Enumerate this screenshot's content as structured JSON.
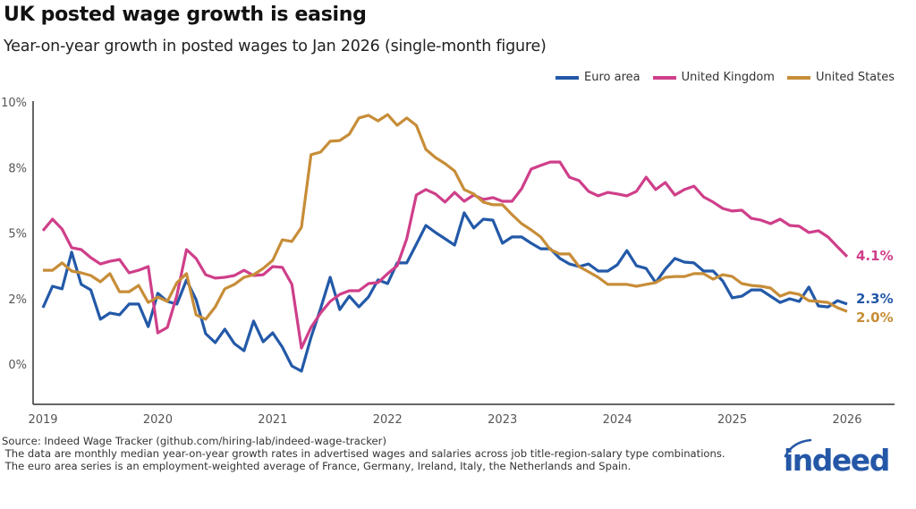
{
  "header": {
    "title": "UK posted wage growth is easing",
    "subtitle": "Year-on-year growth in posted wages to Jan 2026 (single-month figure)"
  },
  "colors": {
    "euro": "#2359a8",
    "uk": "#cf3f8a",
    "us": "#c78d38",
    "axis": "#333333"
  },
  "chart_data": {
    "type": "line",
    "title": "UK posted wage growth is easing",
    "x_start": "2019-01",
    "x_end": "2026-01",
    "x_frequency": "monthly",
    "x_ticks": [
      "2019",
      "2020",
      "2021",
      "2022",
      "2023",
      "2024",
      "2025",
      "2026"
    ],
    "y_ticks": [
      {
        "value": 0,
        "label": "0%"
      },
      {
        "value": 2.5,
        "label": "2%"
      },
      {
        "value": 5,
        "label": "5%"
      },
      {
        "value": 7.5,
        "label": "8%"
      },
      {
        "value": 10,
        "label": "10%"
      }
    ],
    "ylim": [
      -1.5,
      10
    ],
    "grid": false,
    "legend_position": "top-right",
    "series": [
      {
        "name": "Euro area",
        "color": "#2359a8",
        "end_label": "2.3%",
        "values": [
          2.15,
          2.97,
          2.87,
          4.27,
          3.04,
          2.83,
          1.71,
          1.95,
          1.88,
          2.29,
          2.29,
          1.43,
          2.7,
          2.39,
          2.29,
          3.21,
          2.46,
          1.16,
          0.82,
          1.33,
          0.78,
          0.51,
          1.64,
          0.85,
          1.19,
          0.65,
          -0.07,
          -0.27,
          1.02,
          2.12,
          3.31,
          2.08,
          2.59,
          2.18,
          2.56,
          3.21,
          3.07,
          3.86,
          3.86,
          4.57,
          5.29,
          5.02,
          4.78,
          4.54,
          5.77,
          5.19,
          5.53,
          5.49,
          4.61,
          4.85,
          4.85,
          4.61,
          4.4,
          4.4,
          4.03,
          3.82,
          3.72,
          3.82,
          3.55,
          3.55,
          3.79,
          4.33,
          3.75,
          3.65,
          3.11,
          3.62,
          4.03,
          3.89,
          3.86,
          3.55,
          3.55,
          3.17,
          2.53,
          2.59,
          2.83,
          2.83,
          2.59,
          2.35,
          2.49,
          2.39,
          2.94,
          2.22,
          2.18,
          2.42,
          2.29
        ]
      },
      {
        "name": "United Kingdom",
        "color": "#cf3f8a",
        "end_label": "4.1%",
        "values": [
          5.09,
          5.53,
          5.15,
          4.44,
          4.37,
          4.06,
          3.82,
          3.92,
          3.99,
          3.48,
          3.58,
          3.72,
          1.19,
          1.4,
          2.63,
          4.37,
          4.03,
          3.41,
          3.28,
          3.31,
          3.38,
          3.58,
          3.38,
          3.41,
          3.72,
          3.69,
          3.04,
          0.61,
          1.4,
          1.95,
          2.39,
          2.66,
          2.8,
          2.8,
          3.07,
          3.11,
          3.45,
          3.75,
          4.78,
          6.45,
          6.66,
          6.49,
          6.18,
          6.55,
          6.21,
          6.45,
          6.28,
          6.35,
          6.21,
          6.21,
          6.69,
          7.44,
          7.58,
          7.71,
          7.71,
          7.13,
          7.0,
          6.59,
          6.42,
          6.55,
          6.49,
          6.42,
          6.59,
          7.13,
          6.66,
          6.93,
          6.45,
          6.66,
          6.79,
          6.38,
          6.18,
          5.94,
          5.84,
          5.87,
          5.56,
          5.49,
          5.36,
          5.53,
          5.29,
          5.26,
          5.02,
          5.09,
          4.85,
          4.47,
          4.1
        ]
      },
      {
        "name": "United States",
        "color": "#c78d38",
        "end_label": "2.0%",
        "values": [
          3.58,
          3.58,
          3.86,
          3.55,
          3.48,
          3.38,
          3.14,
          3.45,
          2.76,
          2.76,
          3.0,
          2.35,
          2.56,
          2.39,
          3.11,
          3.45,
          1.88,
          1.71,
          2.18,
          2.87,
          3.04,
          3.31,
          3.41,
          3.65,
          3.96,
          4.74,
          4.68,
          5.22,
          7.99,
          8.09,
          8.5,
          8.53,
          8.77,
          9.39,
          9.49,
          9.28,
          9.52,
          9.11,
          9.39,
          9.11,
          8.19,
          7.88,
          7.65,
          7.37,
          6.66,
          6.49,
          6.18,
          6.08,
          6.08,
          5.7,
          5.36,
          5.12,
          4.85,
          4.37,
          4.2,
          4.2,
          3.72,
          3.52,
          3.31,
          3.04,
          3.04,
          3.04,
          2.97,
          3.04,
          3.11,
          3.31,
          3.34,
          3.34,
          3.45,
          3.45,
          3.24,
          3.41,
          3.34,
          3.07,
          3.0,
          2.97,
          2.9,
          2.59,
          2.73,
          2.66,
          2.42,
          2.39,
          2.35,
          2.15,
          2.01
        ]
      }
    ]
  },
  "footer": {
    "source": "Source: Indeed Wage Tracker (github.com/hiring-lab/indeed-wage-tracker)",
    "note1": " The data are monthly median year-on-year growth rates in advertised wages and salaries across job title-region-salary type combinations.",
    "note2": " The euro area series is an employment-weighted average of France, Germany, Ireland, Italy, the Netherlands and Spain."
  },
  "logo": {
    "text": "indeed",
    "color": "#2557a7"
  }
}
